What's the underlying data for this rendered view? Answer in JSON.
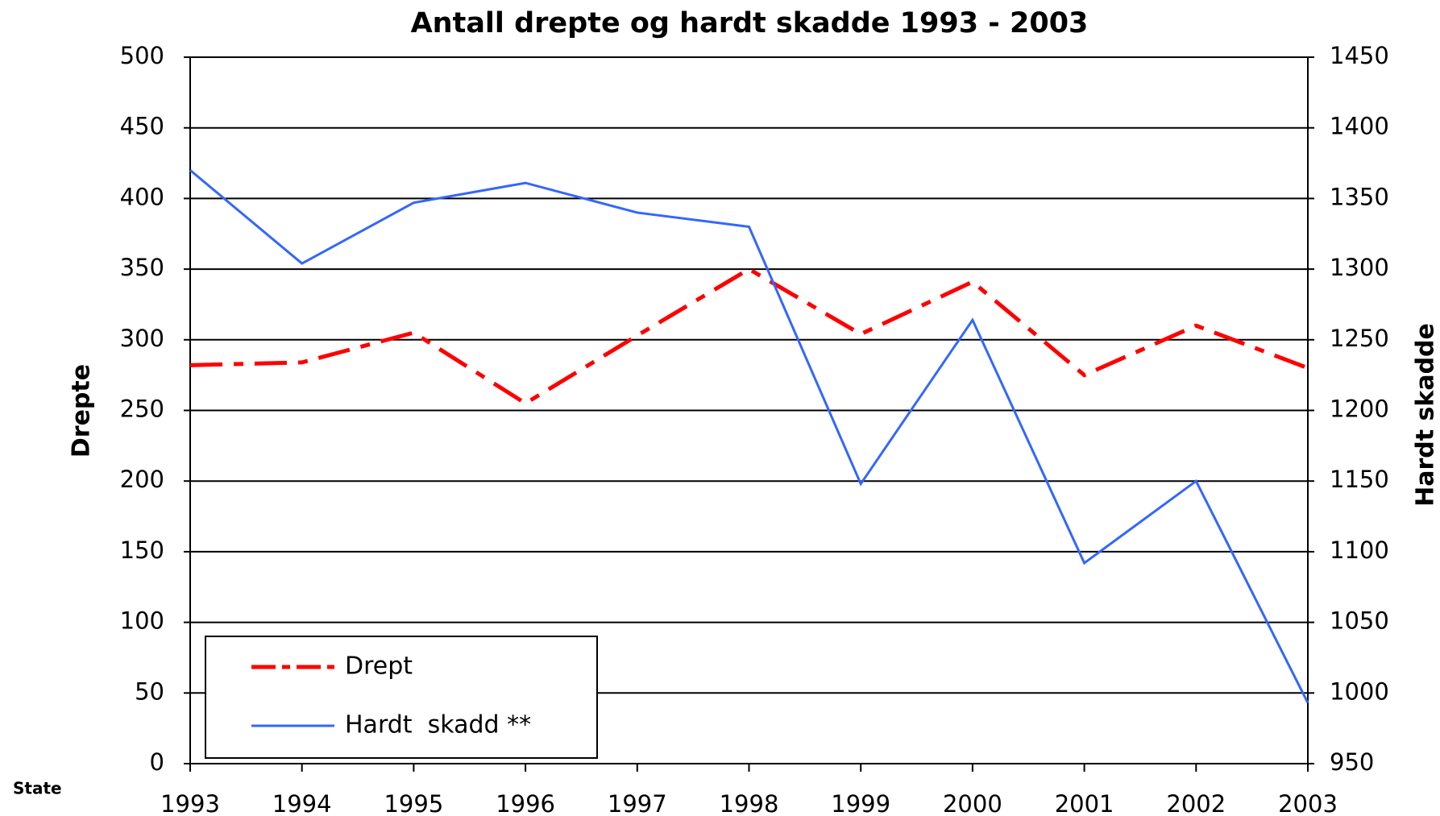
{
  "chart_data": {
    "type": "line",
    "title": "Antall drepte og hardt skadde 1993 - 2003",
    "ylabel": "Drepte",
    "y2label": "Hardt skadde",
    "source": "State",
    "categories": [
      "1993",
      "1994",
      "1995",
      "1996",
      "1997",
      "1998",
      "1999",
      "2000",
      "2001",
      "2002",
      "2003"
    ],
    "series": [
      {
        "name": "Drept",
        "color": "#ff0000",
        "values": [
          282,
          284,
          305,
          255,
          303,
          350,
          304,
          341,
          275,
          310,
          280
        ]
      },
      {
        "name": "Hardt  skadd **",
        "color": "#3366ff",
        "axis": "y2",
        "values": [
          1370,
          1304,
          1347,
          1361,
          1340,
          1330,
          1148,
          1264,
          1092,
          1150,
          993
        ]
      }
    ],
    "ylim": [
      0,
      500
    ],
    "yticks": [
      0,
      50,
      100,
      150,
      200,
      250,
      300,
      350,
      400,
      450,
      500
    ],
    "y2lim": [
      950,
      1450
    ],
    "y2ticks": [
      950,
      1000,
      1050,
      1100,
      1150,
      1200,
      1250,
      1300,
      1350,
      1400,
      1450
    ],
    "grid": true,
    "legend": "lower left"
  }
}
